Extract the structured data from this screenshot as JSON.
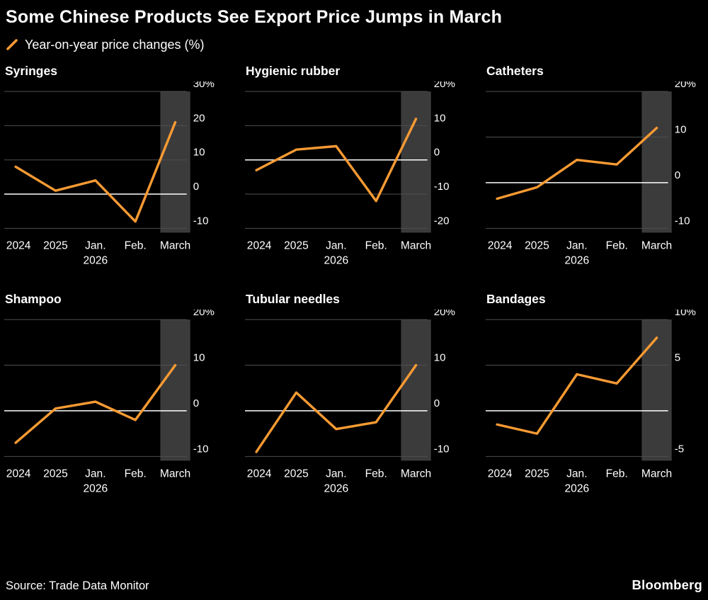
{
  "header": {
    "title": "Some Chinese Products See Export Price Jumps in March",
    "legend_label": "Year-on-year price changes (%)"
  },
  "footer": {
    "source": "Source: Trade Data Monitor",
    "brand": "Bloomberg"
  },
  "colors": {
    "background": "#000000",
    "line": "#f79a33",
    "grid": "#4f4f4f",
    "zero_line": "#ffffff",
    "band": "#3b3b3b",
    "text": "#ffffff"
  },
  "chart_data": [
    {
      "type": "line",
      "title": "Syringes",
      "x_tick_labels": [
        "2024",
        "2025",
        "Jan.",
        "Feb.",
        "March"
      ],
      "x_sub_label": "2026",
      "x_sub_index": 2,
      "values": [
        8,
        1,
        4,
        -8,
        21
      ],
      "y_ticks": [
        30,
        20,
        10,
        0,
        -10
      ],
      "y_tick_labels": [
        "30%",
        "20",
        "10",
        "0",
        "-10"
      ],
      "ylim": [
        -10,
        30
      ],
      "highlight_band_index": 4,
      "grid": true,
      "legend_position": "none"
    },
    {
      "type": "line",
      "title": "Hygienic rubber",
      "x_tick_labels": [
        "2024",
        "2025",
        "Jan.",
        "Feb.",
        "March"
      ],
      "x_sub_label": "2026",
      "x_sub_index": 2,
      "values": [
        -3,
        3,
        4,
        -12,
        12
      ],
      "y_ticks": [
        20,
        10,
        0,
        -10,
        -20
      ],
      "y_tick_labels": [
        "20%",
        "10",
        "0",
        "-10",
        "-20"
      ],
      "ylim": [
        -20,
        20
      ],
      "highlight_band_index": 4,
      "grid": true,
      "legend_position": "none"
    },
    {
      "type": "line",
      "title": "Catheters",
      "x_tick_labels": [
        "2024",
        "2025",
        "Jan.",
        "Feb.",
        "March"
      ],
      "x_sub_label": "2026",
      "x_sub_index": 2,
      "values": [
        -3.5,
        -1,
        5,
        4,
        12
      ],
      "y_ticks": [
        20,
        10,
        0,
        -10
      ],
      "y_tick_labels": [
        "20%",
        "10",
        "0",
        "-10"
      ],
      "ylim": [
        -10,
        20
      ],
      "highlight_band_index": 4,
      "grid": true,
      "legend_position": "none"
    },
    {
      "type": "line",
      "title": "Shampoo",
      "x_tick_labels": [
        "2024",
        "2025",
        "Jan.",
        "Feb.",
        "March"
      ],
      "x_sub_label": "2026",
      "x_sub_index": 2,
      "values": [
        -7,
        0.5,
        2,
        -2,
        10
      ],
      "y_ticks": [
        20,
        10,
        0,
        -10
      ],
      "y_tick_labels": [
        "20%",
        "10",
        "0",
        "-10"
      ],
      "ylim": [
        -10,
        20
      ],
      "highlight_band_index": 4,
      "grid": true,
      "legend_position": "none"
    },
    {
      "type": "line",
      "title": "Tubular needles",
      "x_tick_labels": [
        "2024",
        "2025",
        "Jan.",
        "Feb.",
        "March"
      ],
      "x_sub_label": "2026",
      "x_sub_index": 2,
      "values": [
        -9,
        4,
        -4,
        -2.5,
        10
      ],
      "y_ticks": [
        20,
        10,
        0,
        -10
      ],
      "y_tick_labels": [
        "20%",
        "10",
        "0",
        "-10"
      ],
      "ylim": [
        -10,
        20
      ],
      "highlight_band_index": 4,
      "grid": true,
      "legend_position": "none"
    },
    {
      "type": "line",
      "title": "Bandages",
      "x_tick_labels": [
        "2024",
        "2025",
        "Jan.",
        "Feb.",
        "March"
      ],
      "x_sub_label": "2026",
      "x_sub_index": 2,
      "values": [
        -1.5,
        -2.5,
        4,
        3,
        8
      ],
      "y_ticks": [
        10,
        5,
        0,
        -5
      ],
      "y_tick_labels": [
        "10%",
        "5",
        "",
        "-5"
      ],
      "ylim": [
        -5,
        10
      ],
      "highlight_band_index": 4,
      "grid": true,
      "legend_position": "none"
    }
  ]
}
